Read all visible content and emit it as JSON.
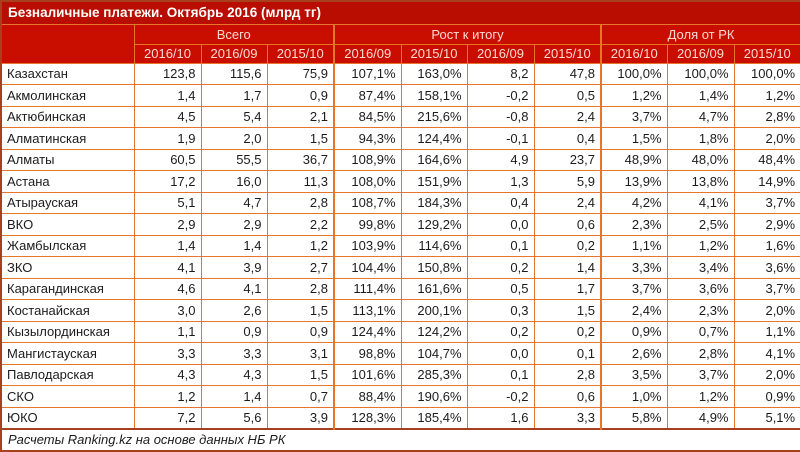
{
  "chart_data": {
    "type": "table",
    "title": "Безналичные платежи. Октябрь 2016 (млрд тг)",
    "footer": "Расчеты Ranking.kz на основе данных НБ РК",
    "column_groups": [
      {
        "label": "Всего",
        "span": 3
      },
      {
        "label": "Рост к итогу",
        "span": 4
      },
      {
        "label": "Доля от РК",
        "span": 3
      }
    ],
    "subheaders": [
      "2016/10",
      "2016/09",
      "2015/10",
      "2016/09",
      "2015/10",
      "2016/09",
      "2015/10",
      "2016/10",
      "2016/09",
      "2015/10"
    ],
    "rows": [
      {
        "region": "Казахстан",
        "values": [
          "123,8",
          "115,6",
          "75,9",
          "107,1%",
          "163,0%",
          "8,2",
          "47,8",
          "100,0%",
          "100,0%",
          "100,0%"
        ]
      },
      {
        "region": "Акмолинская",
        "values": [
          "1,4",
          "1,7",
          "0,9",
          "87,4%",
          "158,1%",
          "-0,2",
          "0,5",
          "1,2%",
          "1,4%",
          "1,2%"
        ]
      },
      {
        "region": "Актюбинская",
        "values": [
          "4,5",
          "5,4",
          "2,1",
          "84,5%",
          "215,6%",
          "-0,8",
          "2,4",
          "3,7%",
          "4,7%",
          "2,8%"
        ]
      },
      {
        "region": "Алматинская",
        "values": [
          "1,9",
          "2,0",
          "1,5",
          "94,3%",
          "124,4%",
          "-0,1",
          "0,4",
          "1,5%",
          "1,8%",
          "2,0%"
        ]
      },
      {
        "region": "Алматы",
        "values": [
          "60,5",
          "55,5",
          "36,7",
          "108,9%",
          "164,6%",
          "4,9",
          "23,7",
          "48,9%",
          "48,0%",
          "48,4%"
        ]
      },
      {
        "region": "Астана",
        "values": [
          "17,2",
          "16,0",
          "11,3",
          "108,0%",
          "151,9%",
          "1,3",
          "5,9",
          "13,9%",
          "13,8%",
          "14,9%"
        ]
      },
      {
        "region": "Атырауская",
        "values": [
          "5,1",
          "4,7",
          "2,8",
          "108,7%",
          "184,3%",
          "0,4",
          "2,4",
          "4,2%",
          "4,1%",
          "3,7%"
        ]
      },
      {
        "region": "ВКО",
        "values": [
          "2,9",
          "2,9",
          "2,2",
          "99,8%",
          "129,2%",
          "0,0",
          "0,6",
          "2,3%",
          "2,5%",
          "2,9%"
        ]
      },
      {
        "region": "Жамбылская",
        "values": [
          "1,4",
          "1,4",
          "1,2",
          "103,9%",
          "114,6%",
          "0,1",
          "0,2",
          "1,1%",
          "1,2%",
          "1,6%"
        ]
      },
      {
        "region": "ЗКО",
        "values": [
          "4,1",
          "3,9",
          "2,7",
          "104,4%",
          "150,8%",
          "0,2",
          "1,4",
          "3,3%",
          "3,4%",
          "3,6%"
        ]
      },
      {
        "region": "Карагандинская",
        "values": [
          "4,6",
          "4,1",
          "2,8",
          "111,4%",
          "161,6%",
          "0,5",
          "1,7",
          "3,7%",
          "3,6%",
          "3,7%"
        ]
      },
      {
        "region": "Костанайская",
        "values": [
          "3,0",
          "2,6",
          "1,5",
          "113,1%",
          "200,1%",
          "0,3",
          "1,5",
          "2,4%",
          "2,3%",
          "2,0%"
        ]
      },
      {
        "region": "Кызылординская",
        "values": [
          "1,1",
          "0,9",
          "0,9",
          "124,4%",
          "124,2%",
          "0,2",
          "0,2",
          "0,9%",
          "0,7%",
          "1,1%"
        ]
      },
      {
        "region": "Мангистауская",
        "values": [
          "3,3",
          "3,3",
          "3,1",
          "98,8%",
          "104,7%",
          "0,0",
          "0,1",
          "2,6%",
          "2,8%",
          "4,1%"
        ]
      },
      {
        "region": "Павлодарская",
        "values": [
          "4,3",
          "4,3",
          "1,5",
          "101,6%",
          "285,3%",
          "0,1",
          "2,8",
          "3,5%",
          "3,7%",
          "2,0%"
        ]
      },
      {
        "region": "СКО",
        "values": [
          "1,2",
          "1,4",
          "0,7",
          "88,4%",
          "190,6%",
          "-0,2",
          "0,6",
          "1,0%",
          "1,2%",
          "0,9%"
        ]
      },
      {
        "region": "ЮКО",
        "values": [
          "7,2",
          "5,6",
          "3,9",
          "128,3%",
          "185,4%",
          "1,6",
          "3,3",
          "5,8%",
          "4,9%",
          "5,1%"
        ]
      }
    ]
  },
  "colors": {
    "title_bg": "#b80d00",
    "header_bg": "#c90e00",
    "grid_line": "#e8762a",
    "outer_border": "#a8401f",
    "header_text": "#ffd8d2",
    "title_text": "#ffffff",
    "data_text": "#1c1c1c",
    "row_bg": "#ffffff"
  }
}
